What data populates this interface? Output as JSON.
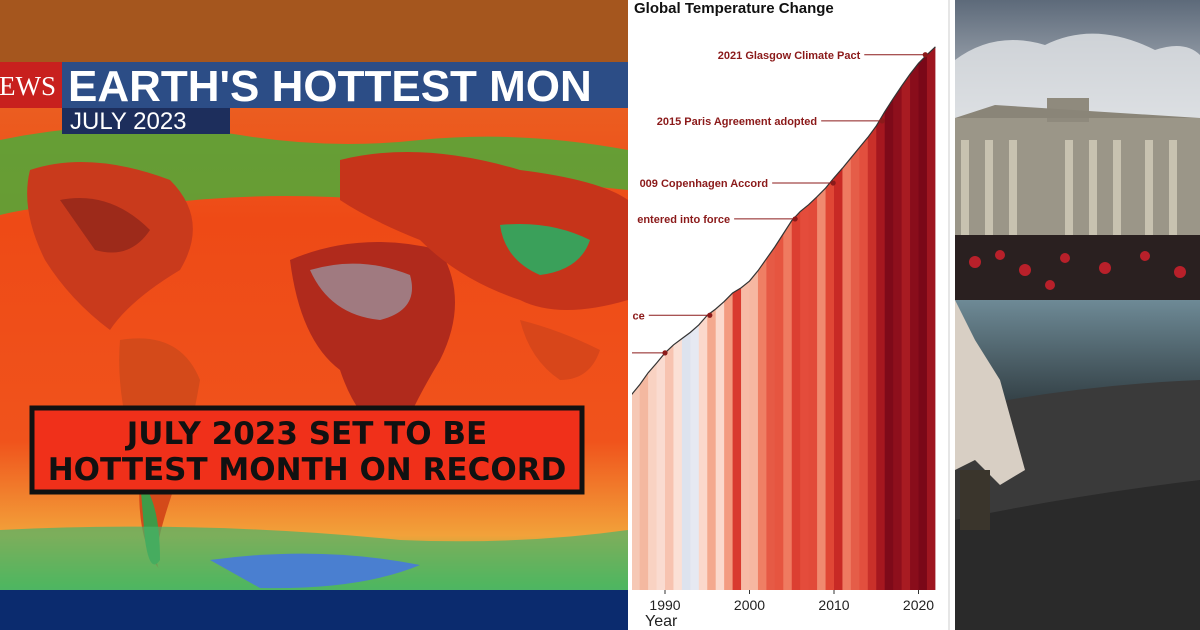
{
  "left_panel": {
    "logo": "EWS",
    "headline": "EARTH'S HOTTEST MON",
    "subhead": "JULY 2023",
    "banner": [
      "JULY 2023 SET TO BE",
      "HOTTEST MONTH ON RECORD"
    ]
  },
  "chart_data": {
    "type": "line",
    "title": "Global Temperature Change",
    "x_label": "Year",
    "x": [
      1986,
      1987,
      1988,
      1989,
      1990,
      1991,
      1992,
      1993,
      1994,
      1995,
      1996,
      1997,
      1998,
      1999,
      2000,
      2001,
      2002,
      2003,
      2004,
      2005,
      2006,
      2007,
      2008,
      2009,
      2010,
      2011,
      2012,
      2013,
      2014,
      2015,
      2016,
      2017,
      2018,
      2019,
      2020,
      2021,
      2022
    ],
    "series": [
      {
        "color": "#333333",
        "values": [
          34.2,
          36.0,
          38.1,
          39.8,
          41.6,
          43.0,
          44.1,
          45.2,
          46.5,
          48.2,
          49.3,
          50.6,
          52.1,
          53.0,
          54.2,
          56.0,
          58.1,
          60.2,
          62.5,
          64.8,
          66.4,
          67.6,
          69.0,
          70.5,
          72.3,
          74.0,
          75.8,
          77.6,
          79.4,
          81.4,
          83.9,
          86.2,
          88.4,
          90.5,
          92.4,
          93.9,
          95.3
        ]
      }
    ],
    "xlim": [
      1986,
      2022
    ],
    "xticks": [
      1990,
      2000,
      2010,
      2020
    ],
    "ylim": [
      0,
      100
    ],
    "stripes": {
      "years": [
        1986,
        1987,
        1988,
        1989,
        1990,
        1991,
        1992,
        1993,
        1994,
        1995,
        1996,
        1997,
        1998,
        1999,
        2000,
        2001,
        2002,
        2003,
        2004,
        2005,
        2006,
        2007,
        2008,
        2009,
        2010,
        2011,
        2012,
        2013,
        2014,
        2015,
        2016,
        2017,
        2018,
        2019,
        2020,
        2021
      ],
      "colors": [
        "#f6c8b5",
        "#f4b8a0",
        "#f9d2c2",
        "#fadbd0",
        "#f7c3b0",
        "#fbe0d5",
        "#dde3ee",
        "#e6e9f2",
        "#fbd8cb",
        "#f4a98e",
        "#fbd9cc",
        "#f39b80",
        "#d93a2f",
        "#f7bba6",
        "#f6b7a1",
        "#ef7f64",
        "#e65a45",
        "#e65540",
        "#ef7a60",
        "#dc3f31",
        "#e44c3b",
        "#e24a39",
        "#f08a70",
        "#e04735",
        "#c82a25",
        "#ee7a61",
        "#e55d48",
        "#e24f3e",
        "#c9302a",
        "#a5171f",
        "#7e0a19",
        "#8e0f1c",
        "#a81b22",
        "#890d1b",
        "#7a0818",
        "#9e1620"
      ]
    },
    "annotation_color": "#8b1a1a",
    "annotations": [
      {
        "text": "2021 Glasgow Climate Pact",
        "x": 2020.8,
        "value": 93.9
      },
      {
        "text": "2015 Paris Agreement adopted",
        "x": 2015.7,
        "value": 82.3
      },
      {
        "text": "009 Copenhagen Accord",
        "x": 2009.9,
        "value": 71.4
      },
      {
        "text": "entered into force",
        "x": 2005.4,
        "value": 65.1
      },
      {
        "text": "rence",
        "x": 1995.3,
        "value": 48.2
      },
      {
        "x": 1990.0,
        "value": 41.6
      }
    ]
  }
}
